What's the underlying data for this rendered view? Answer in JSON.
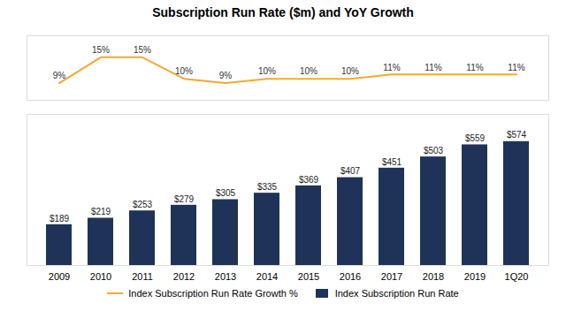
{
  "chart_data": {
    "type": "bar",
    "title": "Subscription Run Rate ($m) and YoY Growth",
    "categories": [
      "2009",
      "2010",
      "2011",
      "2012",
      "2013",
      "2014",
      "2015",
      "2016",
      "2017",
      "2018",
      "2019",
      "1Q20"
    ],
    "series": [
      {
        "name": "Index Subscription Run Rate Growth %",
        "type": "line",
        "axis": "y2",
        "color": "#f5a832",
        "values": [
          9,
          15,
          15,
          10,
          9,
          10,
          10,
          10,
          11,
          11,
          11,
          11
        ],
        "value_labels": [
          "9%",
          "15%",
          "15%",
          "10%",
          "9%",
          "10%",
          "10%",
          "10%",
          "11%",
          "11%",
          "11%",
          "11%"
        ]
      },
      {
        "name": "Index Subscription Run Rate",
        "type": "bar",
        "color": "#1f3358",
        "values": [
          189,
          219,
          253,
          279,
          305,
          335,
          369,
          407,
          451,
          503,
          559,
          574
        ],
        "value_labels": [
          "$189",
          "$219",
          "$253",
          "$279",
          "$305",
          "$335",
          "$369",
          "$407",
          "$451",
          "$503",
          "$559",
          "$574"
        ]
      }
    ],
    "ylim": [
      0,
      700
    ],
    "y2lim": [
      5,
      20
    ],
    "tick_labels": "x",
    "data_labels": true,
    "grid": false,
    "legend": "bottom"
  }
}
